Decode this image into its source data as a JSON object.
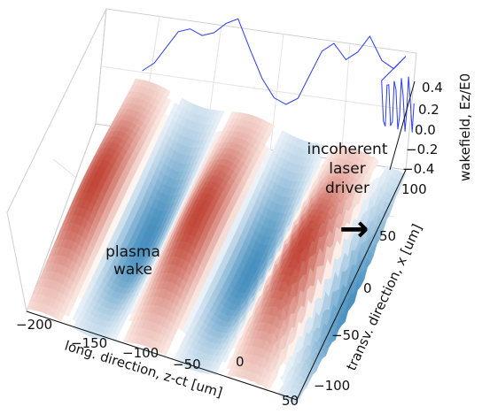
{
  "chart_data": {
    "type": "area",
    "subtype": "3d-surface-with-line",
    "title": "",
    "xlabel": "long. direction, z-ct [um]",
    "ylabel": "transv. direction, x [um]",
    "zlabel": "wakefield, Ez/E0",
    "x_ticks": [
      "−200",
      "−150",
      "−100",
      "−50",
      "0",
      "50"
    ],
    "y_ticks": [
      "−100",
      "−50",
      "0",
      "50",
      "100"
    ],
    "z_ticks": [
      "0.4",
      "0.2",
      "0.0",
      "−0.2",
      "−0.4"
    ],
    "xlim": [
      -200,
      50
    ],
    "ylim": [
      -100,
      100
    ],
    "zlim": [
      -0.4,
      0.4
    ],
    "colormap": "RdBu (red positive, blue negative)",
    "grid": true,
    "line_series": {
      "color": "#2b3df0",
      "x": [
        -170,
        -160,
        -150,
        -140,
        -130,
        -120,
        -110,
        -100,
        -90,
        -80,
        -70,
        -60,
        -50,
        -40,
        -30,
        -20,
        -10,
        0,
        10,
        20,
        30,
        40,
        50
      ],
      "y": [
        0.05,
        0.1,
        0.2,
        0.3,
        0.32,
        0.28,
        0.3,
        0.36,
        0.39,
        0.2,
        0.02,
        -0.1,
        -0.14,
        -0.1,
        0.05,
        0.2,
        0.25,
        0.15,
        0.2,
        0.3,
        0.15,
        0.1,
        0.18
      ]
    },
    "annotations": {
      "plasma": [
        "plasma",
        "wake"
      ],
      "laser": [
        "incoherent",
        "laser",
        "driver"
      ]
    },
    "arrow": "→"
  }
}
